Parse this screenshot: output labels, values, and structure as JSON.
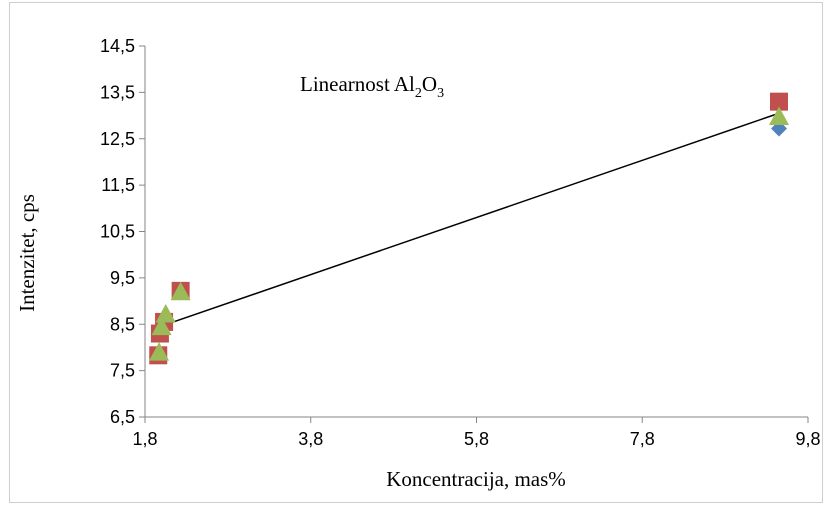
{
  "chart_data": {
    "type": "scatter",
    "title_main": "Linearnost Al",
    "title_sub1": "2",
    "title_mid": "O",
    "title_sub2": "3",
    "xlabel": "Koncentracija, mas%",
    "ylabel": "Intenzitet, cps",
    "xlim": [
      1.8,
      9.8
    ],
    "ylim": [
      6.5,
      14.5
    ],
    "x_ticks": [
      "1,8",
      "3,8",
      "5,8",
      "7,8",
      "9,8"
    ],
    "y_ticks": [
      "6,5",
      "7,5",
      "8,5",
      "9,5",
      "10,5",
      "11,5",
      "12,5",
      "13,5",
      "14,5"
    ],
    "x_tick_values": [
      1.8,
      3.8,
      5.8,
      7.8,
      9.8
    ],
    "y_tick_values": [
      6.5,
      7.5,
      8.5,
      9.5,
      10.5,
      11.5,
      12.5,
      13.5,
      14.5
    ],
    "grid": false,
    "series": [
      {
        "marker": "diamond",
        "color": "#4f81bd",
        "points": [
          {
            "x": 1.96,
            "y": 7.82
          },
          {
            "x": 1.98,
            "y": 8.3
          },
          {
            "x": 2.03,
            "y": 8.55
          },
          {
            "x": 2.23,
            "y": 9.22
          },
          {
            "x": 9.45,
            "y": 12.72
          }
        ]
      },
      {
        "marker": "square",
        "color": "#c0504d",
        "points": [
          {
            "x": 1.96,
            "y": 7.83
          },
          {
            "x": 1.98,
            "y": 8.3
          },
          {
            "x": 2.03,
            "y": 8.55
          },
          {
            "x": 2.23,
            "y": 9.22
          },
          {
            "x": 9.45,
            "y": 13.3
          }
        ]
      },
      {
        "marker": "triangle",
        "color": "#9bbb59",
        "points": [
          {
            "x": 1.97,
            "y": 7.9
          },
          {
            "x": 2.0,
            "y": 8.45
          },
          {
            "x": 2.05,
            "y": 8.72
          },
          {
            "x": 2.23,
            "y": 9.2
          },
          {
            "x": 9.45,
            "y": 12.98
          }
        ]
      }
    ],
    "trendline": {
      "color": "#000000",
      "x": [
        1.98,
        9.45
      ],
      "y": [
        8.45,
        13.05
      ]
    }
  }
}
